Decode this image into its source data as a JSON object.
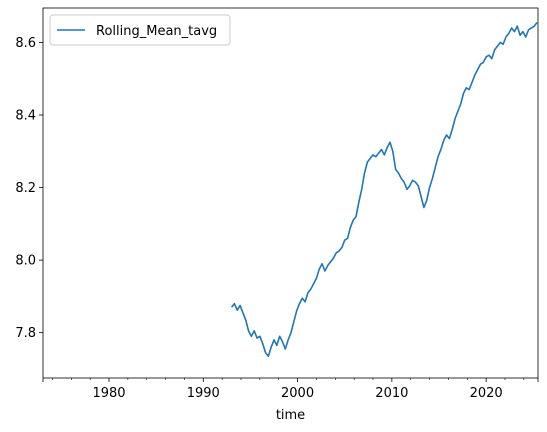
{
  "chart_data": {
    "type": "line",
    "title": "",
    "xlabel": "time",
    "ylabel": "",
    "xlim": [
      1973,
      2025.5
    ],
    "ylim": [
      7.675,
      8.695
    ],
    "x_ticks": [
      1980,
      1990,
      2000,
      2010,
      2020
    ],
    "y_ticks": [
      7.8,
      8.0,
      8.2,
      8.4,
      8.6
    ],
    "y_tick_labels": [
      "7.8",
      "8.0",
      "8.2",
      "8.4",
      "8.6"
    ],
    "grid": false,
    "legend": "top-left",
    "series": [
      {
        "name": "Rolling_Mean_tavg",
        "color": "#1f77b4",
        "points": [
          [
            1993.0,
            7.87
          ],
          [
            1993.3,
            7.88
          ],
          [
            1993.6,
            7.862
          ],
          [
            1993.9,
            7.875
          ],
          [
            1994.2,
            7.855
          ],
          [
            1994.5,
            7.835
          ],
          [
            1994.8,
            7.805
          ],
          [
            1995.1,
            7.79
          ],
          [
            1995.4,
            7.805
          ],
          [
            1995.7,
            7.785
          ],
          [
            1996.0,
            7.79
          ],
          [
            1996.3,
            7.77
          ],
          [
            1996.6,
            7.745
          ],
          [
            1996.9,
            7.735
          ],
          [
            1997.2,
            7.76
          ],
          [
            1997.5,
            7.78
          ],
          [
            1997.8,
            7.765
          ],
          [
            1998.1,
            7.79
          ],
          [
            1998.4,
            7.775
          ],
          [
            1998.7,
            7.755
          ],
          [
            1999.0,
            7.78
          ],
          [
            1999.3,
            7.8
          ],
          [
            1999.6,
            7.83
          ],
          [
            1999.9,
            7.86
          ],
          [
            2000.2,
            7.88
          ],
          [
            2000.5,
            7.895
          ],
          [
            2000.8,
            7.885
          ],
          [
            2001.1,
            7.91
          ],
          [
            2001.4,
            7.92
          ],
          [
            2001.7,
            7.935
          ],
          [
            2002.0,
            7.95
          ],
          [
            2002.3,
            7.975
          ],
          [
            2002.6,
            7.99
          ],
          [
            2002.9,
            7.97
          ],
          [
            2003.2,
            7.985
          ],
          [
            2003.5,
            7.995
          ],
          [
            2003.8,
            8.005
          ],
          [
            2004.1,
            8.02
          ],
          [
            2004.4,
            8.025
          ],
          [
            2004.7,
            8.035
          ],
          [
            2005.0,
            8.055
          ],
          [
            2005.3,
            8.06
          ],
          [
            2005.6,
            8.09
          ],
          [
            2005.9,
            8.11
          ],
          [
            2006.2,
            8.12
          ],
          [
            2006.5,
            8.16
          ],
          [
            2006.8,
            8.195
          ],
          [
            2007.1,
            8.24
          ],
          [
            2007.4,
            8.27
          ],
          [
            2007.7,
            8.28
          ],
          [
            2008.0,
            8.29
          ],
          [
            2008.3,
            8.285
          ],
          [
            2008.6,
            8.295
          ],
          [
            2008.9,
            8.305
          ],
          [
            2009.2,
            8.29
          ],
          [
            2009.5,
            8.31
          ],
          [
            2009.8,
            8.325
          ],
          [
            2010.1,
            8.3
          ],
          [
            2010.4,
            8.25
          ],
          [
            2010.7,
            8.24
          ],
          [
            2011.0,
            8.225
          ],
          [
            2011.3,
            8.215
          ],
          [
            2011.6,
            8.195
          ],
          [
            2011.9,
            8.205
          ],
          [
            2012.2,
            8.22
          ],
          [
            2012.5,
            8.215
          ],
          [
            2012.8,
            8.205
          ],
          [
            2013.1,
            8.175
          ],
          [
            2013.4,
            8.145
          ],
          [
            2013.7,
            8.165
          ],
          [
            2014.0,
            8.2
          ],
          [
            2014.3,
            8.225
          ],
          [
            2014.6,
            8.255
          ],
          [
            2014.9,
            8.285
          ],
          [
            2015.2,
            8.305
          ],
          [
            2015.5,
            8.33
          ],
          [
            2015.8,
            8.345
          ],
          [
            2016.1,
            8.335
          ],
          [
            2016.4,
            8.36
          ],
          [
            2016.7,
            8.39
          ],
          [
            2017.0,
            8.41
          ],
          [
            2017.3,
            8.43
          ],
          [
            2017.6,
            8.46
          ],
          [
            2017.9,
            8.475
          ],
          [
            2018.2,
            8.47
          ],
          [
            2018.5,
            8.49
          ],
          [
            2018.8,
            8.51
          ],
          [
            2019.1,
            8.525
          ],
          [
            2019.4,
            8.54
          ],
          [
            2019.7,
            8.545
          ],
          [
            2020.0,
            8.56
          ],
          [
            2020.3,
            8.565
          ],
          [
            2020.6,
            8.555
          ],
          [
            2020.9,
            8.58
          ],
          [
            2021.2,
            8.59
          ],
          [
            2021.5,
            8.6
          ],
          [
            2021.8,
            8.595
          ],
          [
            2022.1,
            8.615
          ],
          [
            2022.4,
            8.625
          ],
          [
            2022.7,
            8.64
          ],
          [
            2023.0,
            8.63
          ],
          [
            2023.3,
            8.645
          ],
          [
            2023.6,
            8.62
          ],
          [
            2023.9,
            8.63
          ],
          [
            2024.2,
            8.615
          ],
          [
            2024.5,
            8.635
          ],
          [
            2024.8,
            8.64
          ],
          [
            2025.1,
            8.645
          ],
          [
            2025.4,
            8.655
          ]
        ]
      }
    ]
  }
}
